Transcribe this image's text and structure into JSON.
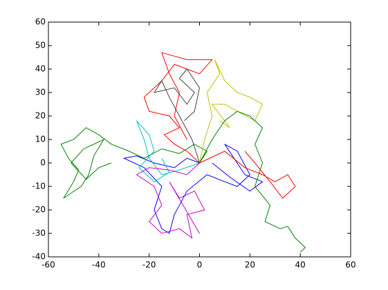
{
  "chart_data": {
    "type": "line",
    "xlim": [
      -60,
      60
    ],
    "ylim": [
      -40,
      60
    ],
    "xticks": [
      -60,
      -40,
      -20,
      0,
      20,
      40,
      60
    ],
    "yticks": [
      -40,
      -30,
      -20,
      -10,
      0,
      10,
      20,
      30,
      40,
      50,
      60
    ],
    "series": [
      {
        "color": "#0000ff",
        "x": [
          0,
          -5,
          -10,
          -18,
          -25,
          -30,
          -22,
          -15,
          -18,
          -15,
          -12,
          -10,
          -5,
          3,
          10,
          15,
          20,
          15,
          10,
          18,
          25,
          20,
          12,
          5
        ],
        "values": [
          0,
          2,
          -2,
          0,
          3,
          2,
          -2,
          -10,
          -20,
          -28,
          -30,
          -22,
          -12,
          -5,
          -8,
          -10,
          -5,
          5,
          8,
          -5,
          -8,
          -12,
          -6,
          0
        ]
      },
      {
        "color": "#008000",
        "x": [
          0,
          3,
          -2,
          -8,
          -15,
          -22,
          -28,
          -35,
          -40,
          -45,
          -50,
          -55,
          -52,
          -48,
          -50,
          -54,
          -47,
          -44,
          -42,
          -38,
          -46,
          -51,
          -45,
          -40,
          -35
        ],
        "values": [
          0,
          5,
          8,
          4,
          6,
          2,
          5,
          8,
          12,
          15,
          10,
          8,
          2,
          -3,
          -8,
          -15,
          -10,
          -5,
          3,
          10,
          6,
          0,
          -7,
          -2,
          0
        ]
      },
      {
        "color": "#ff0000",
        "x": [
          0,
          -5,
          -10,
          -14,
          -8,
          -12,
          -20,
          -22,
          -15,
          -10,
          -5,
          0,
          5,
          -5,
          -15,
          -12,
          -8,
          -10,
          -5
        ],
        "values": [
          0,
          5,
          8,
          12,
          15,
          20,
          22,
          28,
          35,
          42,
          40,
          38,
          44,
          44,
          47,
          38,
          30,
          20,
          10
        ]
      },
      {
        "color": "#00bfbf",
        "x": [
          0,
          -8,
          -15,
          -20,
          -22,
          -25,
          -20,
          -18,
          -24,
          -18,
          -12,
          -15
        ],
        "values": [
          0,
          -3,
          -5,
          2,
          10,
          18,
          12,
          5,
          -2,
          -8,
          -4,
          2
        ]
      },
      {
        "color": "#bf00bf",
        "x": [
          0,
          -5,
          -12,
          -20,
          -25,
          -18,
          -15,
          -20,
          -15,
          -8,
          -3,
          -5,
          2,
          -2,
          -8,
          -12,
          0
        ],
        "values": [
          0,
          -5,
          -3,
          -2,
          -5,
          -10,
          -18,
          -25,
          -30,
          -28,
          -32,
          -22,
          -20,
          -12,
          -15,
          -8,
          -30
        ]
      },
      {
        "color": "#bfbf00",
        "x": [
          0,
          2,
          5,
          3,
          8,
          6,
          10,
          15,
          20,
          25,
          22,
          15,
          10,
          5,
          12,
          8
        ],
        "values": [
          0,
          10,
          20,
          30,
          38,
          44,
          35,
          30,
          28,
          25,
          18,
          22,
          25,
          25,
          15,
          18
        ]
      },
      {
        "color": "#404040",
        "x": [
          0,
          -3,
          -8,
          -12,
          -15,
          -18,
          -10,
          -5,
          -2,
          -8,
          -5,
          0,
          -2,
          -6
        ],
        "values": [
          0,
          10,
          20,
          28,
          35,
          30,
          32,
          25,
          30,
          36,
          40,
          32,
          22,
          18
        ]
      },
      {
        "color": "#008000",
        "x": [
          0,
          5,
          10,
          15,
          20,
          25,
          22,
          25,
          22,
          28,
          26,
          32,
          35,
          38,
          42,
          40
        ],
        "values": [
          0,
          10,
          18,
          22,
          20,
          15,
          8,
          0,
          -10,
          -18,
          -25,
          -28,
          -27,
          -32,
          -36,
          -38
        ]
      },
      {
        "color": "#ff0000",
        "x": [
          0,
          10,
          18,
          25,
          30,
          35,
          38,
          33,
          28,
          22,
          18
        ],
        "values": [
          0,
          5,
          -2,
          -5,
          -8,
          -5,
          -10,
          -15,
          -8,
          0,
          5
        ]
      }
    ]
  }
}
